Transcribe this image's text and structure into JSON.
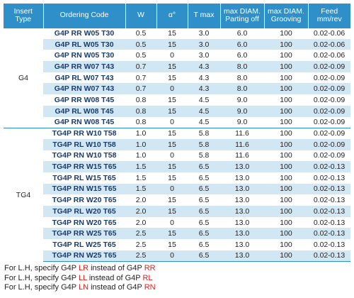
{
  "headers": [
    "Insert Type",
    "Ordering Code",
    "W",
    "α°",
    "T max",
    "max DIAM. Parting off",
    "max DIAM. Grooving",
    "Feed mm/rev"
  ],
  "groups": [
    {
      "type": "G4",
      "rows": [
        {
          "code": "G4P RR W05 T30",
          "w": "0.5",
          "a": "15",
          "t": "3.0",
          "p": "6.0",
          "g": "100",
          "f": "0.02-0.06"
        },
        {
          "code": "G4P RL W05 T30",
          "w": "0.5",
          "a": "15",
          "t": "3.0",
          "p": "6.0",
          "g": "100",
          "f": "0.02-0.06"
        },
        {
          "code": "G4P RN W05 T30",
          "w": "0.5",
          "a": "0",
          "t": "3.0",
          "p": "6.0",
          "g": "100",
          "f": "0.02-0.06"
        },
        {
          "code": "G4P RR W07 T43",
          "w": "0.7",
          "a": "15",
          "t": "4.3",
          "p": "8.0",
          "g": "100",
          "f": "0.02-0.09"
        },
        {
          "code": "G4P RL W07 T43",
          "w": "0.7",
          "a": "15",
          "t": "4.3",
          "p": "8.0",
          "g": "100",
          "f": "0.02-0.09"
        },
        {
          "code": "G4P RN W07 T43",
          "w": "0.7",
          "a": "0",
          "t": "4.3",
          "p": "8.0",
          "g": "100",
          "f": "0.02-0.09"
        },
        {
          "code": "G4P RR W08 T45",
          "w": "0.8",
          "a": "15",
          "t": "4.5",
          "p": "9.0",
          "g": "100",
          "f": "0.02-0.09"
        },
        {
          "code": "G4P RL W08 T45",
          "w": "0.8",
          "a": "15",
          "t": "4.5",
          "p": "9.0",
          "g": "100",
          "f": "0.02-0.09"
        },
        {
          "code": "G4P RN W08 T45",
          "w": "0.8",
          "a": "0",
          "t": "4.5",
          "p": "9.0",
          "g": "100",
          "f": "0.02-0.09"
        }
      ]
    },
    {
      "type": "TG4",
      "rows": [
        {
          "code": "TG4P RR W10 T58",
          "w": "1.0",
          "a": "15",
          "t": "5.8",
          "p": "11.6",
          "g": "100",
          "f": "0.02-0.09"
        },
        {
          "code": "TG4P RL W10 T58",
          "w": "1.0",
          "a": "15",
          "t": "5.8",
          "p": "11.6",
          "g": "100",
          "f": "0.02-0.09"
        },
        {
          "code": "TG4P RN W10 T58",
          "w": "1.0",
          "a": "0",
          "t": "5.8",
          "p": "11.6",
          "g": "100",
          "f": "0.02-0.09"
        },
        {
          "code": "TG4P RR W15 T65",
          "w": "1.5",
          "a": "15",
          "t": "6.5",
          "p": "13.0",
          "g": "100",
          "f": "0.02-0.13"
        },
        {
          "code": "TG4P RL W15 T65",
          "w": "1.5",
          "a": "15",
          "t": "6.5",
          "p": "13.0",
          "g": "100",
          "f": "0.02-0.13"
        },
        {
          "code": "TG4P RN W15 T65",
          "w": "1.5",
          "a": "0",
          "t": "6.5",
          "p": "13.0",
          "g": "100",
          "f": "0.02-0.13"
        },
        {
          "code": "TG4P RR W20 T65",
          "w": "2.0",
          "a": "15",
          "t": "6.5",
          "p": "13.0",
          "g": "100",
          "f": "0.02-0.13"
        },
        {
          "code": "TG4P RL W20 T65",
          "w": "2.0",
          "a": "15",
          "t": "6.5",
          "p": "13.0",
          "g": "100",
          "f": "0.02-0.13"
        },
        {
          "code": "TG4P RN W20 T65",
          "w": "2.0",
          "a": "0",
          "t": "6.5",
          "p": "13.0",
          "g": "100",
          "f": "0.02-0.13"
        },
        {
          "code": "TG4P RR W25 T65",
          "w": "2.5",
          "a": "15",
          "t": "6.5",
          "p": "13.0",
          "g": "100",
          "f": "0.02-0.13"
        },
        {
          "code": "TG4P RL W25 T65",
          "w": "2.5",
          "a": "15",
          "t": "6.5",
          "p": "13.0",
          "g": "100",
          "f": "0.02-0.13"
        },
        {
          "code": "TG4P RN W25 T65",
          "w": "2.5",
          "a": "0",
          "t": "6.5",
          "p": "13.0",
          "g": "100",
          "f": "0.02-0.13"
        }
      ]
    }
  ],
  "notes": [
    {
      "prefix": "For L.H, specify G4P ",
      "alt": "LR",
      "mid": " instead of G4P ",
      "orig": "RR"
    },
    {
      "prefix": "For L.H, specify G4P ",
      "alt": "LL",
      "mid": " instead of G4P ",
      "orig": "RL"
    },
    {
      "prefix": "For L.H, specify G4P ",
      "alt": "LN",
      "mid": " instead of G4P ",
      "orig": "RN"
    }
  ],
  "colors": {
    "header_bg": "#2e8fc9",
    "stripe": "#d2e7f4",
    "code_text": "#1a3c6e",
    "note_highlight": "#e0201b"
  }
}
